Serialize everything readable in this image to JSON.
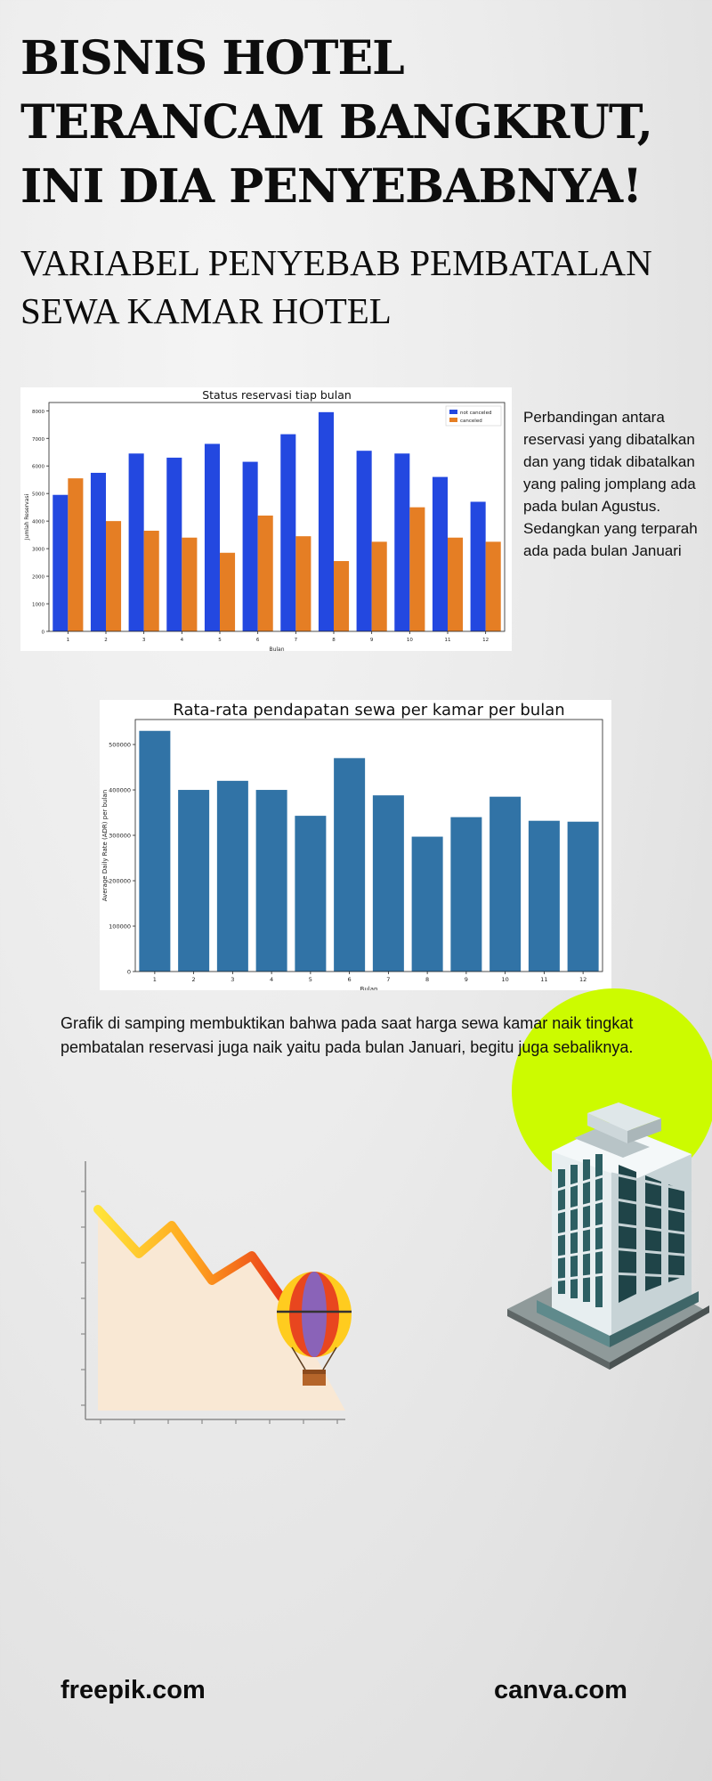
{
  "header": {
    "title": "BISNIS HOTEL TERANCAM BANGKRUT, INI DIA PENYEBABNYA!",
    "subtitle": "VARIABEL PENYEBAB PEMBATALAN SEWA KAMAR HOTEL"
  },
  "side_text": "Perbandingan antara reservasi yang dibatalkan dan yang tidak dibatalkan yang paling jomplang ada pada bulan Agustus. Sedangkan yang terparah ada pada bulan Januari",
  "body_text": "Grafik di samping membuktikan bahwa pada saat harga sewa kamar naik tingkat pembatalan reservasi juga naik yaitu pada bulan Januari, begitu juga sebaliknya.",
  "credits": {
    "left": "freepik.com",
    "right": "canva.com"
  },
  "colors": {
    "accent_green": "#ccfb00",
    "not_canceled": "#2348e0",
    "canceled": "#e57e24",
    "adr_bar": "#3173a6"
  },
  "icons": [
    "hot-air-balloon-icon",
    "hotel-building-icon",
    "declining-chart-icon"
  ],
  "chart_data": [
    {
      "type": "bar",
      "title": "Status reservasi tiap bulan",
      "xlabel": "Bulan",
      "ylabel": "Jumlah Reservasi",
      "categories": [
        "1",
        "2",
        "3",
        "4",
        "5",
        "6",
        "7",
        "8",
        "9",
        "10",
        "11",
        "12"
      ],
      "series": [
        {
          "name": "not canceled",
          "values": [
            4950,
            5750,
            6450,
            6300,
            6800,
            6150,
            7150,
            7950,
            6550,
            6450,
            5600,
            4700
          ]
        },
        {
          "name": "canceled",
          "values": [
            5550,
            4000,
            3650,
            3400,
            2850,
            4200,
            3450,
            2550,
            3250,
            4500,
            3400,
            3250
          ]
        }
      ],
      "ylim": [
        0,
        8300
      ],
      "yticks": [
        0,
        1000,
        2000,
        3000,
        4000,
        5000,
        6000,
        7000,
        8000
      ],
      "legend": "top-right",
      "grid": false
    },
    {
      "type": "bar",
      "title": "Rata-rata pendapatan sewa per kamar per bulan",
      "xlabel": "Bulan",
      "ylabel": "Average Daily Rate (ADR) per bulan",
      "categories": [
        "1",
        "2",
        "3",
        "4",
        "5",
        "6",
        "7",
        "8",
        "9",
        "10",
        "11",
        "12"
      ],
      "values": [
        530000,
        400000,
        420000,
        400000,
        343000,
        470000,
        388000,
        297000,
        340000,
        385000,
        332000,
        330000
      ],
      "ylim": [
        0,
        555000
      ],
      "yticks": [
        0,
        100000,
        200000,
        300000,
        400000,
        500000
      ],
      "grid": false
    }
  ]
}
